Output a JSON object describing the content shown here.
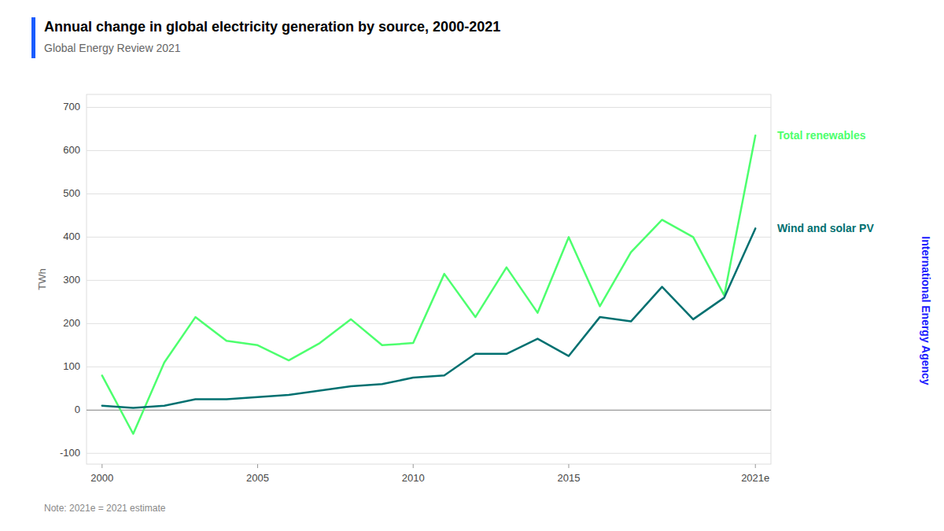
{
  "chart_data": {
    "type": "line",
    "title": "Annual change in global electricity generation by source, 2000-2021",
    "subtitle": "Global Energy Review 2021",
    "y_label": "TWh",
    "annotations": [
      "Note: 2021e = 2021 estimate",
      "International Energy Agency"
    ],
    "x": [
      2000,
      2001,
      2002,
      2003,
      2004,
      2005,
      2006,
      2007,
      2008,
      2009,
      2010,
      2011,
      2012,
      2013,
      2014,
      2015,
      2016,
      2017,
      2018,
      2019,
      2020,
      2021
    ],
    "series": [
      {
        "name": "Total renewables",
        "color": "#4dff6e",
        "values": [
          80,
          -55,
          110,
          215,
          160,
          150,
          115,
          155,
          210,
          150,
          155,
          315,
          215,
          330,
          225,
          400,
          240,
          365,
          440,
          400,
          265,
          635
        ]
      },
      {
        "name": "Wind and solar PV",
        "color": "#007070",
        "values": [
          10,
          5,
          10,
          25,
          25,
          30,
          35,
          45,
          55,
          60,
          75,
          80,
          130,
          130,
          165,
          125,
          215,
          205,
          285,
          210,
          260,
          420
        ]
      }
    ],
    "xlim": [
      1999.5,
      2021.5
    ],
    "xticks": [
      2000,
      2005,
      2010,
      2015,
      {
        "value": 2021,
        "label": "2021e"
      }
    ],
    "ylim": [
      -125,
      730
    ],
    "yticks": [
      -100,
      0,
      100,
      200,
      300,
      400,
      500,
      600,
      700
    ],
    "grid": true
  }
}
